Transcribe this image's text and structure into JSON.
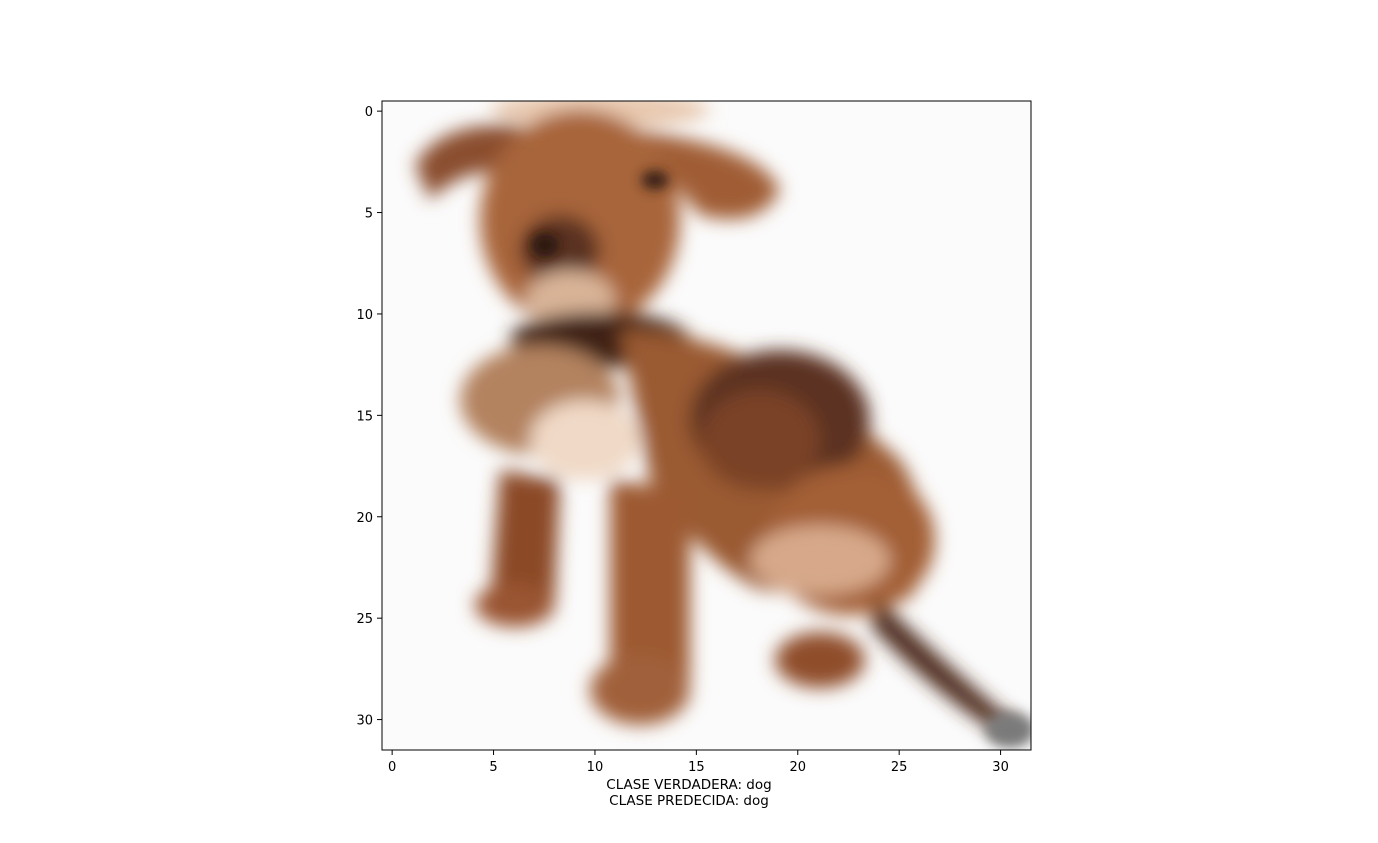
{
  "image_panel": {
    "subject": "blurred low-resolution photo of a brown puppy sitting on white background",
    "colors": {
      "background": "#fbfbfb",
      "fur": "#a0603a",
      "fur_light": "#c98b5f",
      "fur_dark": "#4a2a1c",
      "chest": "#e9c7ad"
    }
  },
  "axes": {
    "x_ticks": [
      "0",
      "5",
      "10",
      "15",
      "20",
      "25",
      "30"
    ],
    "y_ticks": [
      "0",
      "5",
      "10",
      "15",
      "20",
      "25",
      "30"
    ],
    "xlim": [
      -0.5,
      31.5
    ],
    "ylim": [
      31.5,
      -0.5
    ]
  },
  "caption": {
    "line1": "CLASE VERDADERA: dog",
    "line2": "CLASE PREDECIDA: dog"
  }
}
